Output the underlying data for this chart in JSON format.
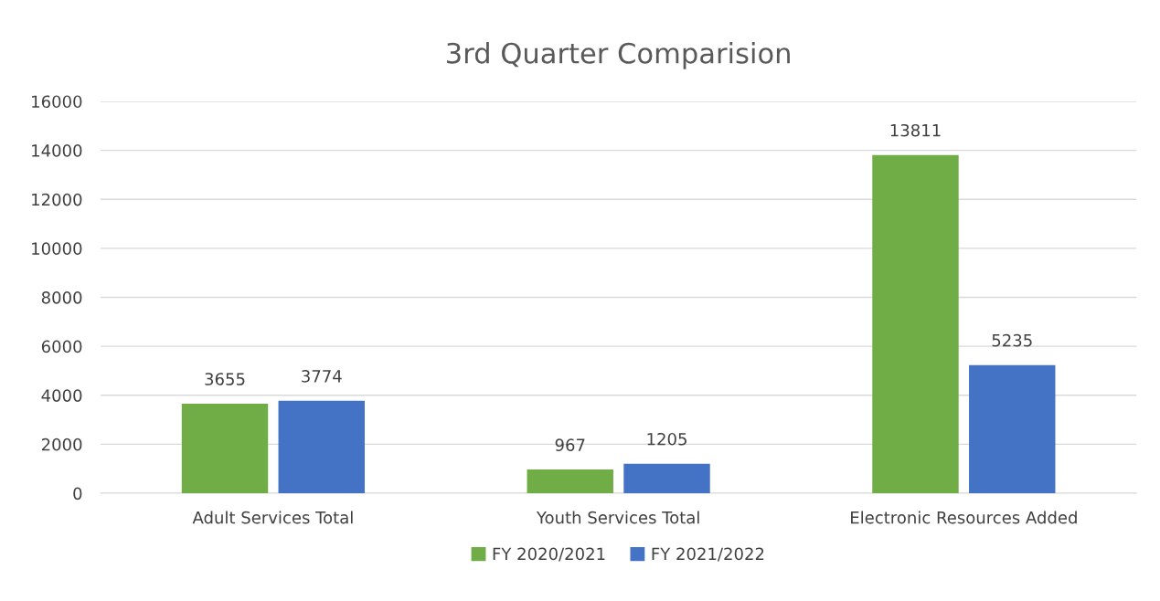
{
  "chart_data": {
    "type": "bar",
    "title": "3rd Quarter Comparision",
    "categories": [
      "Adult Services Total",
      "Youth Services Total",
      "Electronic Resources Added"
    ],
    "series": [
      {
        "name": "FY 2020/2021",
        "color": "#70ad47",
        "values": [
          3655,
          967,
          13811
        ]
      },
      {
        "name": "FY 2021/2022",
        "color": "#4472c4",
        "values": [
          3774,
          1205,
          5235
        ]
      }
    ],
    "ylim": [
      0,
      16000
    ],
    "yticks": [
      0,
      2000,
      4000,
      6000,
      8000,
      10000,
      12000,
      14000,
      16000
    ],
    "grid": "y",
    "legend": "bottom",
    "data_labels": true
  }
}
